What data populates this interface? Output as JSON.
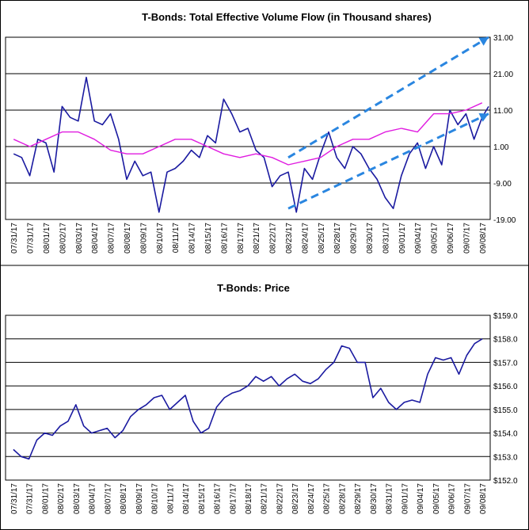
{
  "colors": {
    "series": "#1a1aa0",
    "moving_average": "#e01ce0",
    "trend_arrows": "#2a86e0",
    "gridline": "#000000",
    "frame": "#000000",
    "background": "#ffffff"
  },
  "chart_data": [
    {
      "type": "line",
      "title": "T-Bonds: Total Effective Volume Flow (in Thousand shares)",
      "ylim": [
        -19,
        31
      ],
      "yticks": [
        "31.00",
        "21.00",
        "11.00",
        "1.00",
        "-9.00",
        "-19.00"
      ],
      "ytick_values": [
        31,
        21,
        11,
        1,
        -9,
        -19
      ],
      "grid": true,
      "x_labels": [
        "07/31/17",
        "07/31/17",
        "08/01/17",
        "08/02/17",
        "08/03/17",
        "08/04/17",
        "08/07/17",
        "08/08/17",
        "08/09/17",
        "08/10/17",
        "08/11/17",
        "08/14/17",
        "08/15/17",
        "08/16/17",
        "08/17/17",
        "08/21/17",
        "08/22/17",
        "08/23/17",
        "08/24/17",
        "08/25/17",
        "08/28/17",
        "08/29/17",
        "08/30/17",
        "08/31/17",
        "09/01/17",
        "09/04/17",
        "09/05/17",
        "09/06/17",
        "09/07/17",
        "09/08/17"
      ],
      "series": [
        {
          "style": "volume-flow",
          "x": [
            0,
            0.5,
            1,
            1.5,
            2,
            2.5,
            3,
            3.5,
            4,
            4.5,
            5,
            5.5,
            6,
            6.5,
            7,
            7.5,
            8,
            8.5,
            9,
            9.5,
            10,
            10.5,
            11,
            11.5,
            12,
            12.5,
            13,
            13.5,
            14,
            14.5,
            15,
            15.5,
            16,
            16.5,
            17,
            17.5,
            18,
            18.5,
            19,
            19.5,
            20,
            20.5,
            21,
            21.5,
            22,
            22.5,
            23,
            23.5,
            24,
            24.5,
            25,
            25.5,
            26,
            26.5,
            27,
            27.5,
            28,
            28.5,
            29,
            29.5
          ],
          "values": [
            -1,
            -2,
            -7,
            3,
            2,
            -6,
            12,
            9,
            8,
            20,
            8,
            7,
            10,
            3,
            -8,
            -3,
            -7,
            -6,
            -17,
            -6,
            -5,
            -3,
            0,
            -2,
            4,
            2,
            14,
            10,
            5,
            6,
            0,
            -2,
            -10,
            -7,
            -6,
            -17,
            -5,
            -8,
            -1,
            5,
            -2,
            -5,
            1,
            -1,
            -5,
            -8,
            -13,
            -16,
            -7,
            -1,
            2,
            -5,
            1,
            -4,
            11,
            7,
            10,
            3,
            9,
            12
          ],
          "note": "values sampled at half-label intervals"
        },
        {
          "style": "moving-average",
          "x": [
            0,
            1,
            2,
            3,
            4,
            5,
            6,
            7,
            8,
            9,
            10,
            11,
            12,
            13,
            14,
            15,
            16,
            17,
            18,
            19,
            20,
            21,
            22,
            23,
            24,
            25,
            26,
            27,
            28,
            29
          ],
          "values": [
            3,
            1,
            3,
            5,
            5,
            3,
            0,
            -1,
            -1,
            1,
            3,
            3,
            1,
            -1,
            -2,
            -1,
            -2,
            -4,
            -3,
            -2,
            1,
            3,
            3,
            5,
            6,
            5,
            10,
            10,
            11,
            13
          ]
        }
      ],
      "trend_lines": [
        {
          "x": [
            17,
            29.5
          ],
          "values": [
            -2,
            31
          ]
        },
        {
          "x": [
            17,
            29.5
          ],
          "values": [
            -16,
            10
          ]
        }
      ]
    },
    {
      "type": "line",
      "title": "T-Bonds: Price",
      "ylim": [
        152,
        159
      ],
      "yticks": [
        "$159.0",
        "$158.0",
        "$157.0",
        "$156.0",
        "$155.0",
        "$154.0",
        "$153.0",
        "$152.0"
      ],
      "ytick_values": [
        159,
        158,
        157,
        156,
        155,
        154,
        153,
        152
      ],
      "grid": true,
      "x_labels": [
        "07/31/17",
        "07/31/17",
        "08/01/17",
        "08/02/17",
        "08/03/17",
        "08/04/17",
        "08/07/17",
        "08/08/17",
        "08/09/17",
        "08/10/17",
        "08/11/17",
        "08/14/17",
        "08/15/17",
        "08/16/17",
        "08/17/17",
        "08/18/17",
        "08/21/17",
        "08/22/17",
        "08/23/17",
        "08/24/17",
        "08/25/17",
        "08/28/17",
        "08/29/17",
        "08/30/17",
        "08/31/17",
        "09/01/17",
        "09/04/17",
        "09/05/17",
        "09/06/17",
        "09/07/17",
        "09/08/17"
      ],
      "series": [
        {
          "style": "price",
          "x": [
            0,
            0.5,
            1,
            1.5,
            2,
            2.5,
            3,
            3.5,
            4,
            4.5,
            5,
            5.5,
            6,
            6.5,
            7,
            7.5,
            8,
            8.5,
            9,
            9.5,
            10,
            10.5,
            11,
            11.5,
            12,
            12.5,
            13,
            13.5,
            14,
            14.5,
            15,
            15.5,
            16,
            16.5,
            17,
            17.5,
            18,
            18.5,
            19,
            19.5,
            20,
            20.5,
            21,
            21.5,
            22,
            22.5,
            23,
            23.5,
            24,
            24.5,
            25,
            25.5,
            26,
            26.5,
            27,
            27.5,
            28,
            28.5,
            29,
            29.5,
            30
          ],
          "values": [
            153.3,
            153.0,
            152.9,
            153.7,
            154.0,
            153.9,
            154.3,
            154.5,
            155.2,
            154.3,
            154.0,
            154.1,
            154.2,
            153.8,
            154.1,
            154.7,
            155.0,
            155.2,
            155.5,
            155.6,
            155.0,
            155.3,
            155.6,
            154.5,
            154.0,
            154.2,
            155.1,
            155.5,
            155.7,
            155.8,
            156.0,
            156.4,
            156.2,
            156.4,
            156.0,
            156.3,
            156.5,
            156.2,
            156.1,
            156.3,
            156.7,
            157.0,
            157.7,
            157.6,
            157.0,
            157.0,
            155.5,
            155.9,
            155.3,
            155.0,
            155.3,
            155.4,
            155.3,
            156.5,
            157.2,
            157.1,
            157.2,
            156.5,
            157.3,
            157.8,
            158.0
          ]
        }
      ]
    }
  ]
}
